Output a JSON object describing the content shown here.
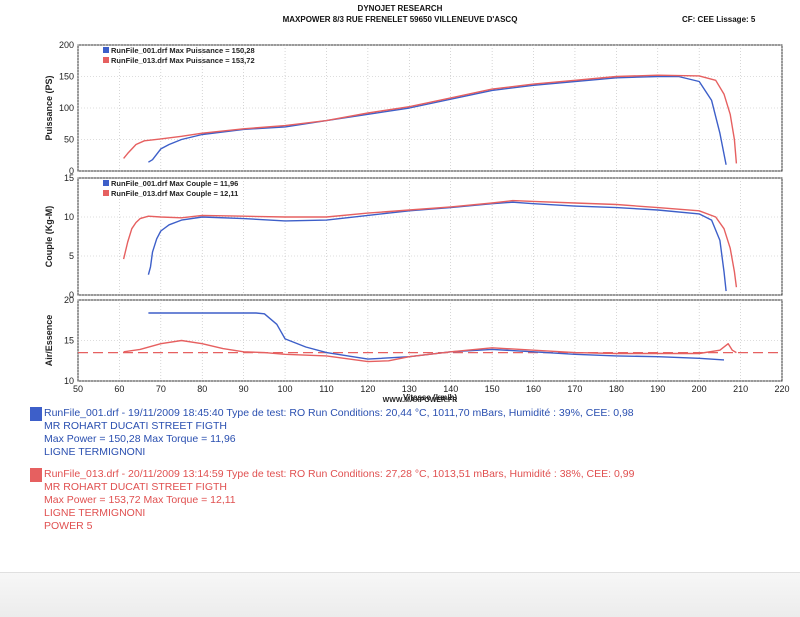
{
  "header": {
    "line1": "DYNOJET RESEARCH",
    "line2": "MAXPOWER 8/3 RUE FRENELET 59650 VILLENEUVE D'ASCQ",
    "right": "CF: CEE  Lissage: 5"
  },
  "watermark": "WWW.MAXPOWER.FR",
  "colors": {
    "run1": "#3d5fc9",
    "run2": "#e66060"
  },
  "chart_data": [
    {
      "type": "line",
      "name": "power",
      "ylabel": "Puissance (PS)",
      "xlim": [
        50,
        220
      ],
      "ylim": [
        0,
        200
      ],
      "yticks": [
        0,
        50,
        100,
        150,
        200
      ],
      "legend": "top-left",
      "series": [
        {
          "name": "RunFile_001.drf Max Puissance = 150,28",
          "x": [
            67,
            68,
            70,
            72,
            75,
            80,
            90,
            100,
            110,
            120,
            130,
            140,
            150,
            160,
            170,
            180,
            190,
            195,
            200,
            203,
            205,
            206.5
          ],
          "y": [
            14,
            18,
            35,
            42,
            50,
            58,
            66,
            70,
            80,
            90,
            100,
            114,
            128,
            136,
            142,
            148,
            150,
            150,
            142,
            112,
            60,
            10
          ]
        },
        {
          "name": "RunFile_013.drf Max Puissance = 153,72",
          "x": [
            61,
            62,
            64,
            66,
            70,
            75,
            80,
            90,
            100,
            110,
            120,
            130,
            140,
            150,
            160,
            170,
            180,
            190,
            200,
            204,
            206,
            207.5,
            208.5,
            209
          ],
          "y": [
            20,
            28,
            42,
            48,
            51,
            55,
            60,
            67,
            72,
            80,
            92,
            102,
            116,
            130,
            138,
            144,
            150,
            152,
            151,
            144,
            122,
            90,
            50,
            12
          ]
        }
      ]
    },
    {
      "type": "line",
      "name": "torque",
      "ylabel": "Couple (Kg-M)",
      "xlim": [
        50,
        220
      ],
      "ylim": [
        0,
        15
      ],
      "yticks": [
        0,
        5,
        10,
        15
      ],
      "legend": "top-left",
      "series": [
        {
          "name": "RunFile_001.drf Max Couple = 11,96",
          "x": [
            67,
            67.5,
            68,
            69,
            70,
            72,
            75,
            80,
            90,
            100,
            110,
            120,
            130,
            140,
            150,
            155,
            160,
            170,
            180,
            190,
            200,
            203,
            205,
            206,
            206.5
          ],
          "y": [
            2.6,
            3.6,
            5.5,
            7.2,
            8.2,
            9.0,
            9.6,
            10.0,
            9.8,
            9.5,
            9.6,
            10.2,
            10.8,
            11.2,
            11.7,
            11.9,
            11.7,
            11.4,
            11.2,
            10.9,
            10.4,
            9.6,
            7.0,
            3.0,
            0.5
          ]
        },
        {
          "name": "RunFile_013.drf Max Couple = 12,11",
          "x": [
            61,
            62,
            63,
            64,
            65,
            67,
            70,
            75,
            80,
            90,
            100,
            110,
            120,
            130,
            140,
            150,
            155,
            160,
            170,
            180,
            190,
            200,
            204,
            206,
            207.5,
            208.5,
            209
          ],
          "y": [
            4.6,
            6.8,
            8.5,
            9.3,
            9.8,
            10.1,
            10.0,
            9.9,
            10.2,
            10.1,
            10.0,
            10.0,
            10.5,
            10.9,
            11.3,
            11.8,
            12.1,
            12.0,
            11.8,
            11.6,
            11.2,
            10.8,
            10.0,
            8.5,
            6.0,
            3.0,
            1.0
          ]
        }
      ]
    },
    {
      "type": "line",
      "name": "afr",
      "ylabel": "Air/Essence",
      "xlabel": "Vitesse (km/h)",
      "xlim": [
        50,
        220
      ],
      "ylim": [
        10,
        20
      ],
      "yticks": [
        10,
        15,
        20
      ],
      "xticks": [
        50,
        60,
        70,
        80,
        90,
        100,
        110,
        120,
        130,
        140,
        150,
        160,
        170,
        180,
        190,
        200,
        210,
        220
      ],
      "reference": 13.5,
      "series": [
        {
          "name": "RunFile_001.drf",
          "x": [
            67,
            70,
            80,
            90,
            93,
            95,
            98,
            100,
            105,
            110,
            120,
            130,
            140,
            150,
            160,
            170,
            180,
            190,
            200,
            206
          ],
          "y": [
            18.4,
            18.4,
            18.4,
            18.4,
            18.4,
            18.3,
            17.0,
            15.2,
            14.2,
            13.5,
            12.7,
            13.0,
            13.6,
            13.9,
            13.6,
            13.3,
            13.1,
            13.0,
            12.8,
            12.6
          ]
        },
        {
          "name": "RunFile_013.drf",
          "x": [
            61,
            65,
            70,
            75,
            80,
            85,
            90,
            95,
            100,
            110,
            120,
            125,
            130,
            140,
            150,
            160,
            170,
            180,
            190,
            200,
            205,
            207,
            208,
            209
          ],
          "y": [
            13.6,
            13.9,
            14.6,
            15.0,
            14.6,
            14.0,
            13.6,
            13.5,
            13.3,
            13.1,
            12.4,
            12.5,
            13.0,
            13.6,
            14.1,
            13.8,
            13.5,
            13.4,
            13.4,
            13.4,
            13.8,
            14.6,
            13.8,
            13.5
          ]
        }
      ]
    }
  ],
  "runs": [
    {
      "line1": "RunFile_001.drf - 19/11/2009 18:45:40  Type de test: RO  Run Conditions: 20,44 °C, 1011,70 mBars,  Humidité : 39%, CEE: 0,98",
      "line2": "MR ROHART DUCATI STREET FIGTH",
      "line3": "Max Power = 150,28  Max Torque = 11,96",
      "line4": "LIGNE TERMIGNONI",
      "line5": ""
    },
    {
      "line1": "RunFile_013.drf - 20/11/2009 13:14:59  Type de test: RO  Run Conditions: 27,28 °C, 1013,51 mBars,  Humidité : 38%, CEE: 0,99",
      "line2": "MR ROHART DUCATI STREET FIGTH",
      "line3": "Max Power = 153,72  Max Torque = 12,11",
      "line4": "LIGNE TERMIGNONI",
      "line5": "POWER 5"
    }
  ]
}
